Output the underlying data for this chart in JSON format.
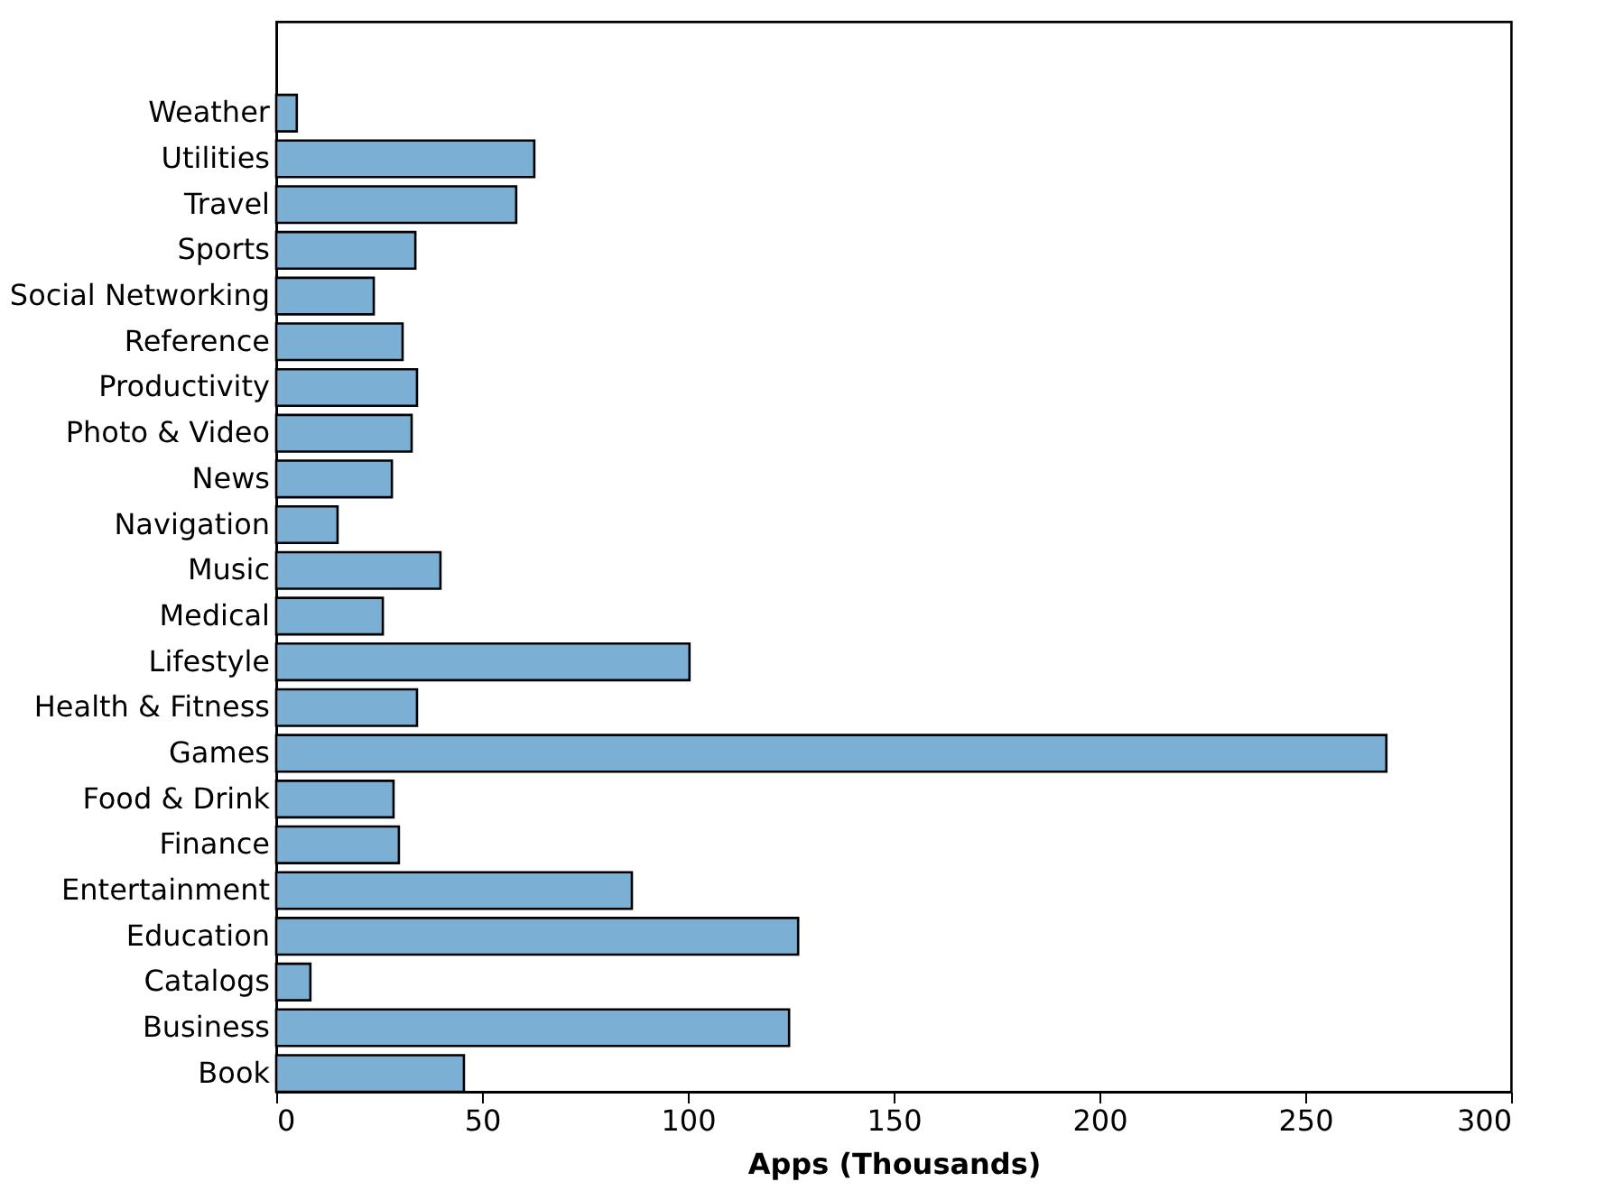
{
  "chart_data": {
    "type": "bar",
    "orientation": "horizontal",
    "xlabel": "Apps (Thousands)",
    "categories": [
      "Weather",
      "Utilities",
      "Travel",
      "Sports",
      "Social Networking",
      "Reference",
      "Productivity",
      "Photo & Video",
      "News",
      "Navigation",
      "Music",
      "Medical",
      "Lifestyle",
      "Health & Fitness",
      "Games",
      "Food & Drink",
      "Finance",
      "Entertainment",
      "Education",
      "Catalogs",
      "Business",
      "Book"
    ],
    "values": [
      5,
      62.7,
      58.3,
      33.8,
      23.7,
      30.7,
      34.2,
      32.9,
      28.1,
      14.9,
      39.9,
      25.9,
      100.4,
      34.2,
      269.7,
      28.5,
      29.8,
      86.4,
      126.8,
      8.3,
      124.6,
      45.6
    ],
    "color": "#7bafd4",
    "xlim": [
      0,
      300
    ],
    "xticks": [
      0,
      50,
      100,
      150,
      200,
      250,
      300
    ],
    "grid": false
  }
}
